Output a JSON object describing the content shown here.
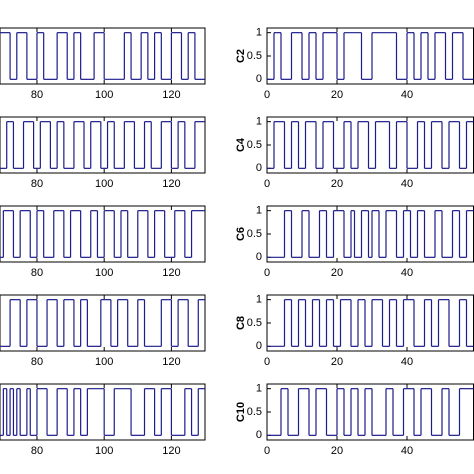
{
  "chart_data": [
    {
      "type": "line",
      "step": "post",
      "color": "#1c1c8a",
      "xlim": [
        69,
        130
      ],
      "xticks": [
        80,
        100,
        120
      ],
      "ylim": [
        -0.1,
        1.1
      ],
      "x": [
        69,
        72,
        74,
        77,
        80,
        82,
        86,
        89,
        91,
        93,
        97,
        100,
        106,
        108,
        111,
        113,
        115,
        117,
        120,
        123,
        125,
        127
      ],
      "values": [
        1,
        0,
        1,
        0,
        1,
        0,
        1,
        0,
        1,
        0,
        1,
        0,
        1,
        0,
        1,
        0,
        1,
        0,
        1,
        0,
        1,
        0
      ]
    },
    {
      "type": "line",
      "step": "post",
      "color": "#1c1c8a",
      "ylabel": "C2",
      "xlim": [
        0,
        59
      ],
      "xticks": [
        0,
        20,
        40
      ],
      "ylim": [
        -0.1,
        1.1
      ],
      "yticks": [
        0,
        0.5,
        1
      ],
      "x": [
        0,
        2,
        4,
        7,
        10,
        12,
        14,
        16,
        20,
        22,
        27,
        30,
        37,
        40,
        42,
        44,
        46,
        48,
        51,
        53,
        56
      ],
      "values": [
        0,
        1,
        0,
        1,
        0,
        1,
        0,
        1,
        0,
        1,
        0,
        1,
        0,
        1,
        0,
        1,
        0,
        1,
        0,
        1,
        0
      ]
    },
    {
      "type": "line",
      "step": "post",
      "color": "#1c1c8a",
      "xlim": [
        69,
        130
      ],
      "xticks": [
        80,
        100,
        120
      ],
      "ylim": [
        -0.1,
        1.1
      ],
      "x": [
        69,
        71,
        73,
        76,
        79,
        81,
        84,
        86,
        88,
        91,
        94,
        96,
        99,
        101,
        103,
        106,
        109,
        112,
        114,
        117,
        120,
        122,
        124,
        127
      ],
      "values": [
        0,
        1,
        0,
        1,
        0,
        1,
        0,
        1,
        0,
        1,
        0,
        1,
        0,
        1,
        0,
        1,
        0,
        1,
        0,
        1,
        0,
        1,
        0,
        1
      ]
    },
    {
      "type": "line",
      "step": "post",
      "color": "#1c1c8a",
      "ylabel": "C4",
      "xlim": [
        0,
        59
      ],
      "xticks": [
        0,
        20,
        40
      ],
      "ylim": [
        -0.1,
        1.1
      ],
      "yticks": [
        0,
        0.5,
        1
      ],
      "x": [
        0,
        2,
        5,
        7,
        9,
        11,
        14,
        16,
        19,
        22,
        24,
        26,
        29,
        31,
        35,
        37,
        40,
        43,
        45,
        47,
        50,
        52,
        55,
        57
      ],
      "values": [
        0,
        1,
        0,
        1,
        0,
        1,
        0,
        1,
        0,
        1,
        0,
        1,
        0,
        1,
        0,
        1,
        0,
        1,
        0,
        1,
        0,
        1,
        0,
        1
      ]
    },
    {
      "type": "line",
      "step": "post",
      "color": "#1c1c8a",
      "xlim": [
        69,
        130
      ],
      "xticks": [
        80,
        100,
        120
      ],
      "ylim": [
        -0.1,
        1.1
      ],
      "x": [
        69,
        70,
        73,
        75,
        78,
        80,
        82,
        85,
        88,
        90,
        93,
        96,
        98,
        100,
        103,
        105,
        107,
        110,
        113,
        115,
        118,
        121,
        124,
        126
      ],
      "values": [
        0,
        1,
        0,
        1,
        0,
        1,
        0,
        1,
        0,
        1,
        0,
        1,
        0,
        1,
        0,
        1,
        0,
        1,
        0,
        1,
        0,
        1,
        0,
        1
      ]
    },
    {
      "type": "line",
      "step": "post",
      "color": "#1c1c8a",
      "ylabel": "C6",
      "xlim": [
        0,
        59
      ],
      "xticks": [
        0,
        20,
        40
      ],
      "ylim": [
        -0.1,
        1.1
      ],
      "yticks": [
        0,
        0.5,
        1
      ],
      "x": [
        0,
        5,
        7,
        10,
        12,
        15,
        17,
        19,
        22,
        24,
        25,
        27,
        29,
        30,
        32,
        34,
        37,
        39,
        41,
        43,
        45,
        48,
        50,
        53,
        55,
        57
      ],
      "values": [
        0,
        1,
        0,
        1,
        0,
        1,
        0,
        1,
        0,
        1,
        0,
        1,
        0,
        1,
        0,
        1,
        0,
        1,
        0,
        1,
        0,
        1,
        0,
        1,
        0,
        1
      ]
    },
    {
      "type": "line",
      "step": "post",
      "color": "#1c1c8a",
      "xlim": [
        69,
        130
      ],
      "xticks": [
        80,
        100,
        120
      ],
      "ylim": [
        -0.1,
        1.1
      ],
      "x": [
        69,
        72,
        75,
        77,
        80,
        83,
        86,
        88,
        91,
        93,
        95,
        99,
        102,
        104,
        107,
        110,
        112,
        117,
        120,
        122,
        125,
        128
      ],
      "values": [
        0,
        1,
        0,
        1,
        0,
        1,
        0,
        1,
        0,
        1,
        0,
        1,
        0,
        1,
        0,
        1,
        0,
        1,
        0,
        1,
        0,
        1
      ]
    },
    {
      "type": "line",
      "step": "post",
      "color": "#1c1c8a",
      "ylabel": "C8",
      "xlim": [
        0,
        59
      ],
      "xticks": [
        0,
        20,
        40
      ],
      "ylim": [
        -0.1,
        1.1
      ],
      "yticks": [
        0,
        0.5,
        1
      ],
      "x": [
        0,
        5,
        7,
        9,
        11,
        13,
        15,
        17,
        19,
        21,
        24,
        26,
        28,
        30,
        33,
        35,
        37,
        39,
        42,
        45,
        47,
        49,
        52,
        55,
        57
      ],
      "values": [
        0,
        1,
        0,
        1,
        0,
        1,
        0,
        1,
        0,
        1,
        0,
        1,
        0,
        1,
        0,
        1,
        0,
        1,
        0,
        1,
        0,
        1,
        0,
        1,
        0
      ]
    },
    {
      "type": "line",
      "step": "post",
      "color": "#1c1c8a",
      "xlim": [
        69,
        130
      ],
      "xticks": [
        80,
        100,
        120
      ],
      "ylim": [
        -0.1,
        1.1
      ],
      "x": [
        69,
        70,
        71,
        72,
        73,
        74,
        75,
        77,
        78,
        80,
        83,
        86,
        89,
        91,
        93,
        95,
        100,
        103,
        108,
        112,
        115,
        117,
        120,
        124,
        126,
        128
      ],
      "values": [
        0,
        1,
        0,
        1,
        0,
        1,
        0,
        1,
        0,
        1,
        0,
        1,
        0,
        1,
        0,
        1,
        0,
        1,
        0,
        1,
        0,
        1,
        0,
        1,
        0,
        1
      ]
    },
    {
      "type": "line",
      "step": "post",
      "color": "#1c1c8a",
      "ylabel": "C10",
      "xlim": [
        0,
        59
      ],
      "xticks": [
        0,
        20,
        40
      ],
      "ylim": [
        -0.1,
        1.1
      ],
      "yticks": [
        0,
        0.5,
        1
      ],
      "x": [
        0,
        4,
        6,
        9,
        12,
        14,
        17,
        20,
        22,
        24,
        26,
        28,
        30,
        34,
        36,
        39,
        42,
        44,
        47,
        50,
        52,
        55
      ],
      "values": [
        0,
        1,
        0,
        1,
        0,
        1,
        0,
        1,
        0,
        1,
        0,
        1,
        0,
        1,
        0,
        1,
        0,
        1,
        0,
        1,
        0,
        1
      ]
    }
  ]
}
